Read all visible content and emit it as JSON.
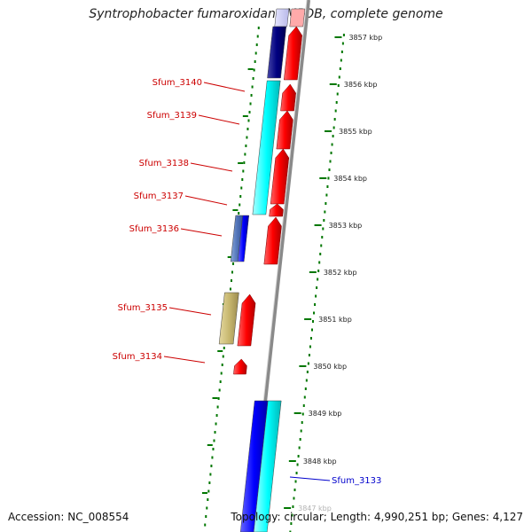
{
  "title": "Syntrophobacter fumaroxidans MPOB, complete genome",
  "footer": {
    "accession": "Accession: NC_008554",
    "topology": "Topology: circular; Length: 4,990,251 bp; Genes: 4,127"
  },
  "colors": {
    "forward_strand": "#ff0000",
    "reverse_cyan": "#00ffff",
    "reverse_navy": "#000080",
    "reverse_blue": "#0000ff",
    "olive": "#c8b870",
    "backbone": "#888888",
    "ruler": "#007700",
    "label_red": "#cc0000",
    "label_blue": "#0000cc"
  },
  "ruler": {
    "ticks": [
      {
        "label": "3857 kbp"
      },
      {
        "label": "3856 kbp"
      },
      {
        "label": "3855 kbp"
      },
      {
        "label": "3854 kbp"
      },
      {
        "label": "3853 kbp"
      },
      {
        "label": "3852 kbp"
      },
      {
        "label": "3851 kbp"
      },
      {
        "label": "3850 kbp"
      },
      {
        "label": "3849 kbp"
      },
      {
        "label": "3848 kbp"
      },
      {
        "label": "3847 kbp"
      }
    ]
  },
  "gene_labels": [
    {
      "name": "Sfum_3140",
      "color": "#cc0000"
    },
    {
      "name": "Sfum_3139",
      "color": "#cc0000"
    },
    {
      "name": "Sfum_3138",
      "color": "#cc0000"
    },
    {
      "name": "Sfum_3137",
      "color": "#cc0000"
    },
    {
      "name": "Sfum_3136",
      "color": "#cc0000"
    },
    {
      "name": "Sfum_3135",
      "color": "#cc0000"
    },
    {
      "name": "Sfum_3134",
      "color": "#cc0000"
    },
    {
      "name": "Sfum_3133",
      "color": "#0000cc"
    }
  ]
}
